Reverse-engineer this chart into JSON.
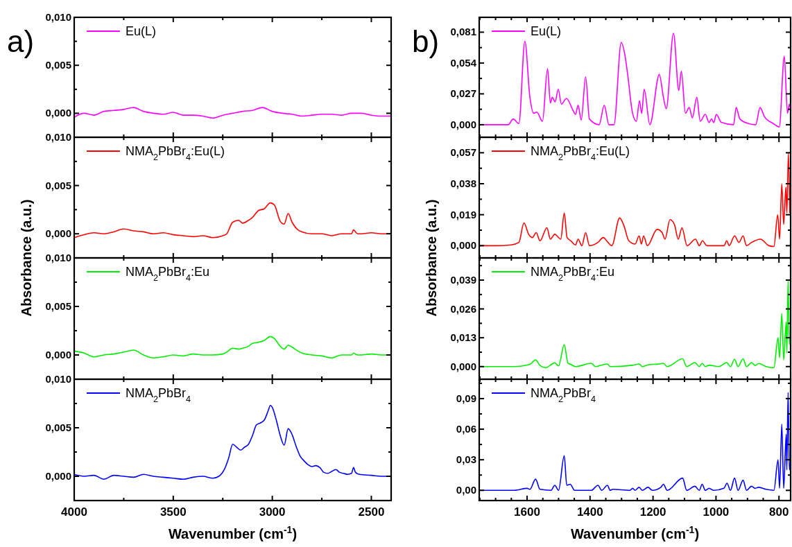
{
  "chart_data": [
    {
      "type": "line",
      "annotations": [
        "a)"
      ],
      "legend": "top left",
      "tick_labels": "y",
      "xlim": [
        4000,
        2400
      ],
      "ylim": [
        -0.0025,
        0.01
      ],
      "xticks": [
        {
          "value": 4000,
          "label": null
        },
        {
          "value": 3750,
          "label": null
        },
        {
          "value": 3500,
          "label": null
        },
        {
          "value": 3250,
          "label": null
        },
        {
          "value": 3000,
          "label": null
        },
        {
          "value": 2750,
          "label": null
        },
        {
          "value": 2500,
          "label": null
        }
      ],
      "yticks": [
        {
          "value": 0,
          "label": "0,000"
        },
        {
          "value": 0.0025,
          "label": null
        },
        {
          "value": 0.005,
          "label": "0,005"
        },
        {
          "value": 0.0075,
          "label": null
        },
        {
          "value": 0.01,
          "label": "0,010"
        }
      ],
      "series": [
        {
          "name": "Eu(L)",
          "color": "#ff00ff",
          "x": [
            4000,
            3950,
            3900,
            3850,
            3800,
            3750,
            3700,
            3650,
            3600,
            3550,
            3500,
            3450,
            3400,
            3350,
            3300,
            3250,
            3200,
            3150,
            3100,
            3050,
            3000,
            2950,
            2900,
            2850,
            2800,
            2750,
            2700,
            2650,
            2600,
            2550,
            2500,
            2450,
            2400
          ],
          "values": [
            -0.0004,
            0.0,
            -0.0002,
            0.0002,
            0.0003,
            0.0004,
            0.0006,
            0.0002,
            0.0,
            -0.0001,
            0.0001,
            -0.0002,
            -0.0002,
            -0.0003,
            -0.0005,
            -0.0002,
            0.0,
            0.0002,
            0.0003,
            0.0006,
            0.0002,
            0.0,
            -0.0001,
            -0.0003,
            -0.0002,
            -0.0001,
            -0.0001,
            -0.0002,
            0.0,
            0.0,
            -0.0002,
            -0.0003,
            -0.0003
          ]
        }
      ]
    },
    {
      "type": "line",
      "ylabel": "Absorbance (a.u.)",
      "legend": "top left",
      "tick_labels": "y",
      "xlim": [
        4000,
        2400
      ],
      "ylim": [
        -0.0025,
        0.01
      ],
      "xticks": [
        {
          "value": 4000,
          "label": null
        },
        {
          "value": 3750,
          "label": null
        },
        {
          "value": 3500,
          "label": null
        },
        {
          "value": 3250,
          "label": null
        },
        {
          "value": 3000,
          "label": null
        },
        {
          "value": 2750,
          "label": null
        },
        {
          "value": 2500,
          "label": null
        }
      ],
      "yticks": [
        {
          "value": 0,
          "label": "0,000"
        },
        {
          "value": 0.0025,
          "label": null
        },
        {
          "value": 0.005,
          "label": "0,005"
        },
        {
          "value": 0.0075,
          "label": null
        },
        {
          "value": 0.01,
          "label": "0,010"
        }
      ],
      "series": [
        {
          "name": "NMA$_{2}$PbBr$_{4}$:Eu(L)",
          "color": "#ff0000",
          "x": [
            4000,
            3950,
            3900,
            3850,
            3800,
            3750,
            3700,
            3650,
            3600,
            3550,
            3500,
            3450,
            3400,
            3350,
            3300,
            3250,
            3230,
            3200,
            3170,
            3150,
            3120,
            3100,
            3070,
            3040,
            3010,
            2990,
            2960,
            2940,
            2920,
            2900,
            2870,
            2850,
            2800,
            2750,
            2700,
            2650,
            2600,
            2590,
            2570,
            2550,
            2500,
            2450,
            2400
          ],
          "values": [
            -0.0004,
            -0.0001,
            0.0001,
            0.0,
            0.0002,
            0.0005,
            0.0003,
            0.0002,
            0.0,
            0.0001,
            -0.0001,
            -0.0002,
            -0.0003,
            -0.0002,
            -0.0004,
            -0.0002,
            0.0,
            0.0012,
            0.0014,
            0.0011,
            0.0014,
            0.0017,
            0.0024,
            0.0026,
            0.0032,
            0.003,
            0.0013,
            0.001,
            0.0021,
            0.0012,
            0.0004,
            0.0002,
            0.0,
            0.0,
            -0.0002,
            0.0,
            0.0,
            0.0004,
            0.0,
            0.0,
            0.0001,
            0.0,
            0.0
          ]
        }
      ]
    },
    {
      "type": "line",
      "legend": "top left",
      "tick_labels": "y",
      "xlim": [
        4000,
        2400
      ],
      "ylim": [
        -0.0025,
        0.01
      ],
      "xticks": [
        {
          "value": 4000,
          "label": null
        },
        {
          "value": 3750,
          "label": null
        },
        {
          "value": 3500,
          "label": null
        },
        {
          "value": 3250,
          "label": null
        },
        {
          "value": 3000,
          "label": null
        },
        {
          "value": 2750,
          "label": null
        },
        {
          "value": 2500,
          "label": null
        }
      ],
      "yticks": [
        {
          "value": 0,
          "label": "0,000"
        },
        {
          "value": 0.0025,
          "label": null
        },
        {
          "value": 0.005,
          "label": "0,005"
        },
        {
          "value": 0.0075,
          "label": null
        },
        {
          "value": 0.01,
          "label": "0,010"
        }
      ],
      "series": [
        {
          "name": "NMA$_{2}$PbBr$_{4}$:Eu",
          "color": "#00ee00",
          "x": [
            4000,
            3950,
            3900,
            3850,
            3800,
            3750,
            3700,
            3650,
            3600,
            3550,
            3500,
            3450,
            3400,
            3350,
            3300,
            3250,
            3230,
            3200,
            3170,
            3150,
            3120,
            3100,
            3070,
            3040,
            3010,
            2990,
            2960,
            2940,
            2920,
            2900,
            2870,
            2850,
            2800,
            2750,
            2700,
            2650,
            2600,
            2590,
            2570,
            2550,
            2500,
            2450,
            2400
          ],
          "values": [
            0.0004,
            0.0002,
            -0.0002,
            0.0,
            0.0001,
            0.0003,
            0.0005,
            0.0,
            -0.0003,
            -0.0002,
            0.0,
            -0.0001,
            0.0001,
            0.0,
            0.0,
            0.0001,
            0.0003,
            0.0007,
            0.0006,
            0.0007,
            0.0009,
            0.0012,
            0.0013,
            0.0015,
            0.0019,
            0.0017,
            0.0009,
            0.0006,
            0.001,
            0.0008,
            0.0004,
            0.0002,
            0.0,
            -0.0001,
            -0.0003,
            0.0,
            0.0,
            0.0002,
            0.0,
            0.0,
            0.0001,
            0.0,
            0.0
          ]
        }
      ]
    },
    {
      "type": "line",
      "xlabel": "Wavenumber (cm$^{-1}$)",
      "legend": "top left",
      "xlim": [
        4000,
        2400
      ],
      "ylim": [
        -0.0025,
        0.01
      ],
      "xticks": [
        4000,
        {
          "value": 3750,
          "label": null
        },
        3500,
        {
          "value": 3250,
          "label": null
        },
        3000,
        {
          "value": 2750,
          "label": null
        },
        2500
      ],
      "yticks": [
        {
          "value": 0,
          "label": "0,000"
        },
        {
          "value": 0.0025,
          "label": null
        },
        {
          "value": 0.005,
          "label": "0,005"
        },
        {
          "value": 0.0075,
          "label": null
        },
        {
          "value": 0.01,
          "label": "0,010"
        }
      ],
      "series": [
        {
          "name": "NMA$_{2}$PbBr$_{4}$",
          "color": "#0000ff",
          "x": [
            4000,
            3950,
            3900,
            3850,
            3800,
            3750,
            3700,
            3650,
            3600,
            3550,
            3500,
            3450,
            3400,
            3350,
            3300,
            3270,
            3240,
            3220,
            3200,
            3180,
            3160,
            3140,
            3120,
            3100,
            3080,
            3060,
            3040,
            3020,
            3010,
            3000,
            2980,
            2960,
            2940,
            2920,
            2900,
            2880,
            2860,
            2840,
            2820,
            2800,
            2780,
            2760,
            2740,
            2720,
            2700,
            2680,
            2660,
            2640,
            2620,
            2600,
            2590,
            2580,
            2560,
            2500,
            2450,
            2400
          ],
          "values": [
            0.0002,
            0.0,
            0.0001,
            -0.0003,
            0.0001,
            0.0,
            -0.0001,
            0.0002,
            0.0,
            -0.0001,
            -0.0002,
            -0.0003,
            -0.0001,
            0.0,
            -0.0002,
            0.0,
            0.0008,
            0.0019,
            0.0033,
            0.003,
            0.0027,
            0.003,
            0.0033,
            0.0042,
            0.0053,
            0.0055,
            0.0058,
            0.0068,
            0.0073,
            0.0071,
            0.0058,
            0.0042,
            0.0032,
            0.0049,
            0.0043,
            0.0031,
            0.0021,
            0.0016,
            0.0012,
            0.001,
            0.0011,
            0.0009,
            0.0004,
            0.0003,
            0.0005,
            0.0007,
            0.0004,
            0.0003,
            0.0002,
            0.0003,
            0.0009,
            0.0004,
            0.0002,
            0.0001,
            0.0,
            0.0
          ]
        }
      ]
    },
    {
      "type": "line",
      "annotations": [
        "b)"
      ],
      "legend": "top left",
      "tick_labels": "y",
      "xlim": [
        1752,
        763
      ],
      "ylim": [
        -0.011,
        0.094
      ],
      "xticks": [
        {
          "value": 1750,
          "label": null
        },
        {
          "value": 1700,
          "label": null
        },
        {
          "value": 1650,
          "label": null
        },
        {
          "value": 1600,
          "label": null
        },
        {
          "value": 1550,
          "label": null
        },
        {
          "value": 1500,
          "label": null
        },
        {
          "value": 1450,
          "label": null
        },
        {
          "value": 1400,
          "label": null
        },
        {
          "value": 1350,
          "label": null
        },
        {
          "value": 1300,
          "label": null
        },
        {
          "value": 1250,
          "label": null
        },
        {
          "value": 1200,
          "label": null
        },
        {
          "value": 1150,
          "label": null
        },
        {
          "value": 1100,
          "label": null
        },
        {
          "value": 1050,
          "label": null
        },
        {
          "value": 1000,
          "label": null
        },
        {
          "value": 950,
          "label": null
        },
        {
          "value": 900,
          "label": null
        },
        {
          "value": 850,
          "label": null
        },
        {
          "value": 800,
          "label": null
        }
      ],
      "yticks": [
        {
          "value": 0,
          "label": "0,000"
        },
        {
          "value": 0.0135,
          "label": null
        },
        {
          "value": 0.027,
          "label": "0,027"
        },
        {
          "value": 0.0405,
          "label": null
        },
        {
          "value": 0.054,
          "label": "0,054"
        },
        {
          "value": 0.0675,
          "label": null
        },
        {
          "value": 0.081,
          "label": "0,081"
        }
      ],
      "series": [
        {
          "name": "Eu(L)",
          "color": "#ff00ff",
          "x": [
            1752,
            1700,
            1660,
            1644,
            1626,
            1607,
            1591,
            1579,
            1569,
            1551,
            1535,
            1526,
            1520,
            1511,
            1501,
            1491,
            1475,
            1453,
            1446,
            1438,
            1428,
            1414,
            1402,
            1371,
            1355,
            1340,
            1324,
            1301,
            1290,
            1281,
            1265,
            1253,
            1243,
            1236,
            1228,
            1210,
            1180,
            1167,
            1158,
            1135,
            1118,
            1110,
            1097,
            1085,
            1075,
            1061,
            1050,
            1034,
            1022,
            1014,
            1007,
            999,
            983,
            944,
            936,
            924,
            897,
            874,
            860,
            846,
            818,
            799,
            783,
            773,
            767,
            763
          ],
          "values": [
            0,
            0,
            0,
            0.005,
            0.001,
            0.073,
            0.024,
            0.01,
            0.011,
            0.003,
            0.049,
            0.019,
            0.024,
            0.02,
            0.031,
            0.018,
            0.023,
            0.012,
            0.009,
            0.017,
            0.004,
            0.042,
            0.005,
            0,
            0.017,
            0,
            0,
            0.072,
            0.062,
            0.045,
            0.01,
            0.003,
            0.021,
            0.01,
            0.031,
            0,
            0.044,
            0.024,
            0.014,
            0.08,
            0.03,
            0.047,
            0.01,
            0.015,
            0.006,
            0.024,
            0.003,
            0.009,
            0.002,
            0.005,
            0.002,
            0.009,
            0.002,
            0,
            0.015,
            0.005,
            0.001,
            0,
            0.015,
            0.007,
            0.001,
            -0.002,
            0.06,
            0.01,
            0.018,
            0.012
          ]
        }
      ]
    },
    {
      "type": "line",
      "ylabel": "Absorbance (a.u.)",
      "legend": "top left",
      "tick_labels": "y",
      "xlim": [
        1752,
        763
      ],
      "ylim": [
        -0.0075,
        0.0665
      ],
      "xticks": [
        {
          "value": 1750,
          "label": null
        },
        {
          "value": 1700,
          "label": null
        },
        {
          "value": 1650,
          "label": null
        },
        {
          "value": 1600,
          "label": null
        },
        {
          "value": 1550,
          "label": null
        },
        {
          "value": 1500,
          "label": null
        },
        {
          "value": 1450,
          "label": null
        },
        {
          "value": 1400,
          "label": null
        },
        {
          "value": 1350,
          "label": null
        },
        {
          "value": 1300,
          "label": null
        },
        {
          "value": 1250,
          "label": null
        },
        {
          "value": 1200,
          "label": null
        },
        {
          "value": 1150,
          "label": null
        },
        {
          "value": 1100,
          "label": null
        },
        {
          "value": 1050,
          "label": null
        },
        {
          "value": 1000,
          "label": null
        },
        {
          "value": 950,
          "label": null
        },
        {
          "value": 900,
          "label": null
        },
        {
          "value": 850,
          "label": null
        },
        {
          "value": 800,
          "label": null
        }
      ],
      "yticks": [
        {
          "value": 0,
          "label": "0,000"
        },
        {
          "value": 0.0095,
          "label": null
        },
        {
          "value": 0.019,
          "label": "0,019"
        },
        {
          "value": 0.0285,
          "label": null
        },
        {
          "value": 0.038,
          "label": "0,038"
        },
        {
          "value": 0.0475,
          "label": null
        },
        {
          "value": 0.057,
          "label": "0,057"
        }
      ],
      "series": [
        {
          "name": "NMA$_{2}$PbBr$_{4}$:Eu(L)",
          "color": "#ff0000",
          "x": [
            1752,
            1700,
            1650,
            1626,
            1610,
            1595,
            1583,
            1571,
            1559,
            1537,
            1526,
            1512,
            1500,
            1493,
            1482,
            1473,
            1461,
            1446,
            1438,
            1426,
            1414,
            1402,
            1375,
            1358,
            1343,
            1331,
            1306,
            1292,
            1277,
            1257,
            1244,
            1237,
            1230,
            1218,
            1187,
            1171,
            1162,
            1146,
            1132,
            1120,
            1108,
            1092,
            1065,
            1053,
            1043,
            1029,
            974,
            966,
            958,
            941,
            927,
            914,
            903,
            887,
            859,
            832,
            816,
            804,
            798,
            791,
            785,
            778,
            775,
            770,
            766
          ],
          "values": [
            0,
            0,
            0.0005,
            0.002,
            0.014,
            0.007,
            0.005,
            0.008,
            0.003,
            0.011,
            0.004,
            0.007,
            0.005,
            0.004,
            0.02,
            0.005,
            0.003,
            0.0005,
            0.004,
            0,
            0.008,
            0,
            0.002,
            0.005,
            0.002,
            0,
            0.017,
            0.012,
            0.003,
            0.001,
            0.006,
            0.001,
            0.006,
            0,
            0.01,
            0.008,
            0.004,
            0.016,
            0.013,
            0.004,
            0.011,
            0,
            0.004,
            0,
            0.003,
            0,
            0,
            0.003,
            0,
            0.006,
            0.002,
            0.006,
            0,
            0.002,
            0.004,
            0,
            -0.0005,
            0.019,
            0.004,
            0.038,
            0.013,
            0.036,
            0.02,
            0.057,
            0.02
          ]
        }
      ]
    },
    {
      "type": "line",
      "legend": "top left",
      "tick_labels": "y",
      "xlim": [
        1752,
        763
      ],
      "ylim": [
        -0.0057,
        0.049
      ],
      "xticks": [
        {
          "value": 1750,
          "label": null
        },
        {
          "value": 1700,
          "label": null
        },
        {
          "value": 1650,
          "label": null
        },
        {
          "value": 1600,
          "label": null
        },
        {
          "value": 1550,
          "label": null
        },
        {
          "value": 1500,
          "label": null
        },
        {
          "value": 1450,
          "label": null
        },
        {
          "value": 1400,
          "label": null
        },
        {
          "value": 1350,
          "label": null
        },
        {
          "value": 1300,
          "label": null
        },
        {
          "value": 1250,
          "label": null
        },
        {
          "value": 1200,
          "label": null
        },
        {
          "value": 1150,
          "label": null
        },
        {
          "value": 1100,
          "label": null
        },
        {
          "value": 1050,
          "label": null
        },
        {
          "value": 1000,
          "label": null
        },
        {
          "value": 950,
          "label": null
        },
        {
          "value": 900,
          "label": null
        },
        {
          "value": 850,
          "label": null
        },
        {
          "value": 800,
          "label": null
        }
      ],
      "yticks": [
        {
          "value": 0,
          "label": "0,000"
        },
        {
          "value": 0.0065,
          "label": null
        },
        {
          "value": 0.013,
          "label": "0,013"
        },
        {
          "value": 0.0195,
          "label": null
        },
        {
          "value": 0.026,
          "label": "0,026"
        },
        {
          "value": 0.0325,
          "label": null
        },
        {
          "value": 0.039,
          "label": "0,039"
        },
        {
          "value": 0.0455,
          "label": null
        }
      ],
      "series": [
        {
          "name": "NMA$_{2}$PbBr$_{4}$:Eu",
          "color": "#00ee00",
          "x": [
            1752,
            1700,
            1640,
            1600,
            1591,
            1573,
            1559,
            1541,
            1512,
            1500,
            1482,
            1470,
            1461,
            1446,
            1396,
            1383,
            1345,
            1336,
            1265,
            1244,
            1234,
            1216,
            1179,
            1167,
            1155,
            1106,
            1093,
            1067,
            1053,
            1044,
            1034,
            1022,
            991,
            966,
            954,
            941,
            930,
            914,
            903,
            887,
            876,
            864,
            841,
            816,
            803,
            798,
            791,
            785,
            777,
            775,
            771,
            767,
            763
          ],
          "values": [
            0,
            0,
            0,
            0.0007,
            0.001,
            0.003,
            0.0005,
            -0.0005,
            0.0017,
            0.0003,
            0.0098,
            0.0015,
            0.001,
            0,
            0.0015,
            0,
            0.0012,
            0,
            0.0006,
            0.0012,
            0,
            0.0008,
            0.0012,
            0.0015,
            0,
            0.0035,
            0,
            0.0018,
            0,
            0.0015,
            0,
            0.0006,
            0,
            0.0018,
            0,
            0.0033,
            0,
            0.0035,
            0,
            0.0018,
            0.0005,
            0.0014,
            0,
            -0.0005,
            0.013,
            0.004,
            0.024,
            0.003,
            0.02,
            0.006,
            0.039,
            0.01,
            0.014
          ]
        }
      ]
    },
    {
      "type": "line",
      "xlabel": "Wavenumber (cm$^{-1}$)",
      "legend": "top left",
      "xlim": [
        1752,
        763
      ],
      "ylim": [
        -0.01,
        0.109
      ],
      "xticks": [
        {
          "value": 1750,
          "label": null
        },
        {
          "value": 1700,
          "label": null
        },
        {
          "value": 1650,
          "label": null
        },
        1600,
        {
          "value": 1550,
          "label": null
        },
        {
          "value": 1500,
          "label": null
        },
        {
          "value": 1450,
          "label": null
        },
        1400,
        {
          "value": 1350,
          "label": null
        },
        {
          "value": 1300,
          "label": null
        },
        {
          "value": 1250,
          "label": null
        },
        1200,
        {
          "value": 1150,
          "label": null
        },
        {
          "value": 1100,
          "label": null
        },
        {
          "value": 1050,
          "label": null
        },
        1000,
        {
          "value": 950,
          "label": null
        },
        {
          "value": 900,
          "label": null
        },
        {
          "value": 850,
          "label": null
        },
        800
      ],
      "yticks": [
        {
          "value": 0,
          "label": "0,00"
        },
        {
          "value": 0.015,
          "label": null
        },
        {
          "value": 0.03,
          "label": "0,03"
        },
        {
          "value": 0.045,
          "label": null
        },
        {
          "value": 0.06,
          "label": "0,06"
        },
        {
          "value": 0.075,
          "label": null
        },
        {
          "value": 0.09,
          "label": "0,09"
        },
        {
          "value": 0.105,
          "label": null
        }
      ],
      "series": [
        {
          "name": "NMA$_{2}$PbBr$_{4}$",
          "color": "#0000ff",
          "x": [
            1752,
            1700,
            1640,
            1600,
            1591,
            1573,
            1559,
            1524,
            1512,
            1500,
            1482,
            1474,
            1463,
            1449,
            1396,
            1375,
            1363,
            1345,
            1336,
            1328,
            1273,
            1265,
            1257,
            1244,
            1234,
            1216,
            1202,
            1175,
            1167,
            1155,
            1106,
            1093,
            1067,
            1053,
            1044,
            1034,
            1022,
            1007,
            975,
            965,
            954,
            941,
            930,
            914,
            903,
            887,
            876,
            864,
            841,
            816,
            803,
            798,
            791,
            785,
            777,
            775,
            771,
            767,
            763
          ],
          "values": [
            0,
            0,
            0,
            0.002,
            0.001,
            0.011,
            0.001,
            0,
            0.005,
            0,
            0.034,
            0.005,
            0.006,
            0,
            0,
            0.005,
            0,
            0.005,
            0,
            0.001,
            0,
            0.002,
            0,
            0.003,
            0,
            0.003,
            0,
            0.003,
            0.006,
            0,
            0.012,
            0,
            0.004,
            0,
            0.006,
            0,
            0.002,
            0,
            0.002,
            0.007,
            0,
            0.012,
            0,
            0.01,
            0,
            0.004,
            0.002,
            0.003,
            0.001,
            0,
            0.03,
            0.002,
            0.065,
            0.002,
            0.055,
            0.02,
            0.096,
            0.02,
            0.03
          ]
        }
      ]
    }
  ]
}
